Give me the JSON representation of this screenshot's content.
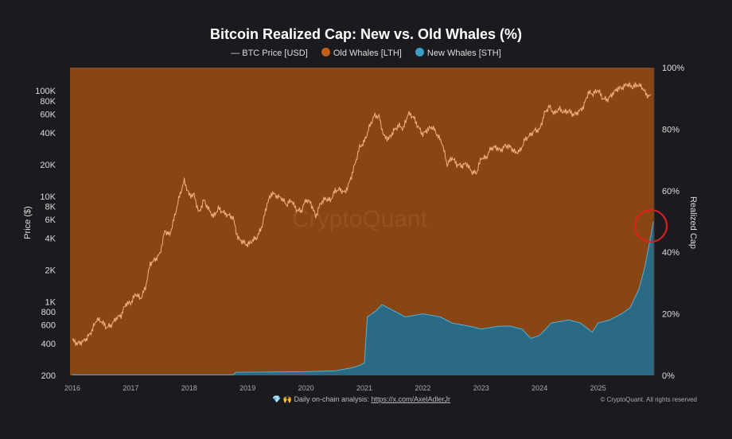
{
  "chart_data": {
    "type": "line",
    "title": "Bitcoin Realized Cap: New vs. Old Whales (%)",
    "ylabel": "Price ($)",
    "y2label": "Realized Cap",
    "y_scale": "log",
    "ylim": [
      200,
      166000
    ],
    "y2lim": [
      0,
      100
    ],
    "xlim": [
      2016.0,
      2026.0
    ],
    "grid": false,
    "legend_placement": "top-center",
    "x_ticks": [
      "2016",
      "2017",
      "2018",
      "2019",
      "2020",
      "2021",
      "2022",
      "2023",
      "2024",
      "2025"
    ],
    "y_ticks": [
      "200",
      "400",
      "600",
      "800",
      "1K",
      "2K",
      "4K",
      "6K",
      "8K",
      "10K",
      "20K",
      "40K",
      "60K",
      "80K",
      "100K"
    ],
    "y_tick_values": [
      200,
      400,
      600,
      800,
      1000,
      2000,
      4000,
      6000,
      8000,
      10000,
      20000,
      40000,
      60000,
      80000,
      100000
    ],
    "y2_ticks": [
      "0%",
      "20%",
      "40%",
      "60%",
      "80%",
      "100%"
    ],
    "y2_tick_values": [
      0,
      20,
      40,
      60,
      80,
      100
    ],
    "watermark": "CryptoQuant",
    "colors": {
      "price": "#f4b183",
      "old_whales": "#8a4514",
      "new_whales": "#2a6a84",
      "new_whales_line": "#4fb3d9",
      "highlight_circle": "#e02020"
    },
    "series": [
      {
        "name": "BTC Price [USD]",
        "kind": "line",
        "axis": "left",
        "start": 2016.0,
        "step_months": 1,
        "values": [
          430,
          400,
          415,
          450,
          530,
          680,
          650,
          570,
          600,
          700,
          740,
          960,
          970,
          1190,
          1070,
          1350,
          2300,
          2500,
          2850,
          4700,
          4300,
          6400,
          10000,
          14000,
          10200,
          10300,
          6900,
          9200,
          7500,
          6400,
          7700,
          7000,
          6600,
          6300,
          4000,
          3700,
          3450,
          3800,
          4100,
          5300,
          8500,
          10800,
          10000,
          9600,
          8300,
          9200,
          7500,
          7200,
          9300,
          8600,
          6400,
          8600,
          9500,
          9100,
          11300,
          11600,
          10800,
          13800,
          19700,
          29000,
          33000,
          45000,
          58000,
          57000,
          37000,
          35000,
          41500,
          47000,
          43800,
          61000,
          57000,
          46000,
          38500,
          43000,
          45500,
          38000,
          31800,
          19900,
          23300,
          20000,
          19400,
          20500,
          17100,
          16500,
          23100,
          23100,
          28500,
          29200,
          27200,
          30400,
          29200,
          25900,
          27000,
          34500,
          37700,
          42200,
          42500,
          61000,
          71000,
          60600,
          67500,
          62700,
          64600,
          59000,
          63300,
          70200,
          96400,
          93400,
          102000,
          84300,
          82500,
          94200,
          104600,
          107100,
          115700,
          108200,
          114000,
          109500,
          91000,
          88000
        ]
      },
      {
        "name": "Old Whales [LTH]",
        "kind": "area",
        "axis": "right",
        "note_values": "100 minus New Whales"
      },
      {
        "name": "New Whales [STH]",
        "kind": "area",
        "axis": "right",
        "x": [
          2016.0,
          2018.75,
          2018.8,
          2020.0,
          2020.5,
          2020.8,
          2020.95,
          2021.0,
          2021.05,
          2021.2,
          2021.3,
          2021.5,
          2021.7,
          2022.0,
          2022.3,
          2022.5,
          2022.8,
          2023.0,
          2023.3,
          2023.5,
          2023.7,
          2023.85,
          2024.0,
          2024.2,
          2024.5,
          2024.7,
          2024.9,
          2025.0,
          2025.2,
          2025.4,
          2025.55,
          2025.7,
          2025.8,
          2025.9,
          2025.95
        ],
        "values": [
          0.2,
          0.2,
          1.0,
          1.2,
          1.5,
          2.5,
          3.5,
          4,
          19,
          21,
          23,
          21,
          19,
          20,
          19,
          17,
          16,
          15,
          16,
          16,
          15,
          12,
          13,
          17,
          18,
          17,
          14,
          17,
          18,
          20,
          22,
          28,
          35,
          45,
          50
        ]
      }
    ]
  },
  "footer": {
    "icons": "💎 🙌",
    "text": "Daily on-chain analysis: ",
    "link": "https://x.com/AxelAdlerJr",
    "copyright": "© CryptoQuant. All rights reserved"
  }
}
